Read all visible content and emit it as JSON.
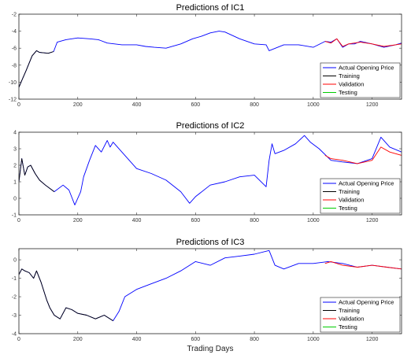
{
  "chart_data": [
    {
      "type": "line",
      "title": "Predictions of IC1",
      "xlabel": "",
      "ylabel": "",
      "xlim": [
        0,
        1300
      ],
      "ylim": [
        -12,
        -2
      ],
      "xticks": [
        0,
        200,
        400,
        600,
        800,
        1000,
        1200
      ],
      "yticks": [
        -12,
        -10,
        -8,
        -6,
        -4,
        -2
      ],
      "legend_position": "lower-right",
      "series": [
        {
          "name": "Actual Opening Price",
          "color": "#0000ff",
          "x": [
            0,
            10,
            25,
            45,
            60,
            70,
            100,
            118,
            130,
            160,
            200,
            240,
            270,
            300,
            350,
            400,
            430,
            460,
            500,
            550,
            590,
            620,
            650,
            680,
            700,
            750,
            800,
            840,
            850,
            900,
            950,
            1000,
            1040,
            1060,
            1080,
            1100,
            1120,
            1140,
            1160,
            1200,
            1240,
            1280,
            1300
          ],
          "values": [
            -10.6,
            -9.8,
            -8.6,
            -6.9,
            -6.3,
            -6.5,
            -6.6,
            -6.4,
            -5.3,
            -5.0,
            -4.8,
            -4.9,
            -5.0,
            -5.4,
            -5.6,
            -5.6,
            -5.8,
            -5.9,
            -6.0,
            -5.5,
            -4.9,
            -4.6,
            -4.2,
            -4.0,
            -4.1,
            -4.9,
            -5.5,
            -5.6,
            -6.3,
            -5.6,
            -5.6,
            -5.9,
            -5.2,
            -5.3,
            -4.9,
            -5.9,
            -5.5,
            -5.5,
            -5.2,
            -5.5,
            -5.9,
            -5.6,
            -5.4
          ]
        },
        {
          "name": "Training",
          "color": "#000000",
          "x": [
            0,
            10,
            25,
            45,
            60,
            70,
            100,
            118
          ],
          "values": [
            -10.6,
            -9.8,
            -8.6,
            -6.9,
            -6.3,
            -6.5,
            -6.6,
            -6.4
          ]
        },
        {
          "name": "Validation",
          "color": "#ff0000",
          "x": [
            1040,
            1060,
            1080,
            1100,
            1120,
            1140,
            1160,
            1200,
            1240,
            1280,
            1300
          ],
          "values": [
            -5.2,
            -5.4,
            -4.9,
            -5.8,
            -5.5,
            -5.4,
            -5.3,
            -5.5,
            -5.8,
            -5.6,
            -5.5
          ]
        },
        {
          "name": "Testing",
          "color": "#00cc00",
          "x": [],
          "values": []
        }
      ]
    },
    {
      "type": "line",
      "title": "Predictions of IC2",
      "xlabel": "",
      "ylabel": "",
      "xlim": [
        0,
        1300
      ],
      "ylim": [
        -1,
        4
      ],
      "xticks": [
        0,
        200,
        400,
        600,
        800,
        1000,
        1200
      ],
      "yticks": [
        -1,
        0,
        1,
        2,
        3,
        4
      ],
      "legend_position": "lower-right",
      "series": [
        {
          "name": "Actual Opening Price",
          "color": "#0000ff",
          "x": [
            0,
            10,
            20,
            30,
            40,
            55,
            70,
            90,
            120,
            150,
            170,
            190,
            210,
            220,
            240,
            260,
            280,
            300,
            310,
            320,
            350,
            400,
            450,
            500,
            550,
            580,
            600,
            650,
            700,
            750,
            800,
            840,
            850,
            860,
            870,
            900,
            940,
            970,
            990,
            1020,
            1060,
            1100,
            1150,
            1200,
            1230,
            1260,
            1300
          ],
          "values": [
            1.0,
            2.4,
            1.4,
            1.9,
            2.0,
            1.5,
            1.1,
            0.8,
            0.4,
            0.8,
            0.5,
            -0.4,
            0.4,
            1.3,
            2.3,
            3.2,
            2.8,
            3.5,
            3.1,
            3.4,
            2.8,
            1.8,
            1.5,
            1.1,
            0.4,
            -0.3,
            0.1,
            0.8,
            1.0,
            1.3,
            1.4,
            0.7,
            2.3,
            3.3,
            2.7,
            2.9,
            3.3,
            3.8,
            3.4,
            3.0,
            2.3,
            2.2,
            2.1,
            2.4,
            3.7,
            3.1,
            2.8
          ]
        },
        {
          "name": "Training",
          "color": "#000000",
          "x": [
            0,
            10,
            20,
            30,
            40,
            55,
            70,
            90,
            120
          ],
          "values": [
            1.0,
            2.4,
            1.4,
            1.9,
            2.0,
            1.5,
            1.1,
            0.8,
            0.4
          ]
        },
        {
          "name": "Validation",
          "color": "#ff0000",
          "x": [
            1040,
            1060,
            1100,
            1150,
            1200,
            1230,
            1260,
            1300
          ],
          "values": [
            2.6,
            2.4,
            2.3,
            2.1,
            2.3,
            3.1,
            2.8,
            2.6
          ]
        },
        {
          "name": "Testing",
          "color": "#00cc00",
          "x": [],
          "values": []
        }
      ]
    },
    {
      "type": "line",
      "title": "Predictions of IC3",
      "xlabel": "Trading Days",
      "ylabel": "",
      "xlim": [
        0,
        1300
      ],
      "ylim": [
        -4,
        0.6
      ],
      "xticks": [
        0,
        200,
        400,
        600,
        800,
        1000,
        1200
      ],
      "yticks": [
        -4,
        -3,
        -2,
        -1,
        0
      ],
      "legend_position": "lower-right",
      "series": [
        {
          "name": "Actual Opening Price",
          "color": "#0000ff",
          "x": [
            0,
            10,
            20,
            35,
            50,
            60,
            75,
            95,
            105,
            120,
            140,
            160,
            180,
            200,
            230,
            260,
            290,
            320,
            340,
            360,
            400,
            450,
            500,
            550,
            600,
            650,
            700,
            750,
            800,
            850,
            870,
            900,
            950,
            1000,
            1050,
            1100,
            1150,
            1200,
            1250,
            1300
          ],
          "values": [
            -0.8,
            -0.5,
            -0.6,
            -0.7,
            -1.0,
            -0.6,
            -1.2,
            -2.2,
            -2.6,
            -3.0,
            -3.2,
            -2.6,
            -2.7,
            -2.9,
            -3.0,
            -3.2,
            -3.0,
            -3.3,
            -2.8,
            -2.0,
            -1.6,
            -1.3,
            -1.0,
            -0.6,
            -0.1,
            -0.3,
            0.1,
            0.2,
            0.3,
            0.5,
            -0.3,
            -0.5,
            -0.2,
            -0.2,
            -0.1,
            -0.2,
            -0.4,
            -0.3,
            -0.4,
            -0.5
          ]
        },
        {
          "name": "Training",
          "color": "#000000",
          "x": [
            0,
            10,
            20,
            35,
            50,
            60,
            75,
            95,
            105,
            120,
            140,
            160,
            180,
            200,
            230,
            260,
            290,
            320
          ],
          "values": [
            -0.8,
            -0.5,
            -0.6,
            -0.7,
            -1.0,
            -0.6,
            -1.2,
            -2.2,
            -2.6,
            -3.0,
            -3.2,
            -2.6,
            -2.7,
            -2.9,
            -3.0,
            -3.2,
            -3.0,
            -3.3
          ]
        },
        {
          "name": "Validation",
          "color": "#ff0000",
          "x": [
            1040,
            1060,
            1100,
            1150,
            1200,
            1250,
            1300
          ],
          "values": [
            -0.2,
            -0.1,
            -0.3,
            -0.4,
            -0.3,
            -0.4,
            -0.5
          ]
        },
        {
          "name": "Testing",
          "color": "#00cc00",
          "x": [],
          "values": []
        }
      ]
    }
  ]
}
